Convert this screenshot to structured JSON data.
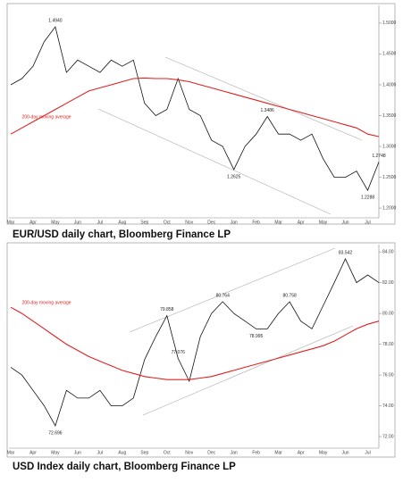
{
  "chart_data": [
    {
      "type": "line",
      "caption": "EUR/USD daily chart, Bloomberg Finance LP",
      "categories": [
        "Mar",
        null,
        "Apr",
        null,
        "May",
        null,
        "Jun",
        null,
        "Jul",
        null,
        "Aug",
        null,
        "Sep",
        null,
        "Oct",
        null,
        "Nov",
        null,
        "Dec",
        null,
        "Jan",
        null,
        "Feb",
        null,
        "Mar",
        null,
        "Apr",
        null,
        "May",
        null,
        "Jun",
        null,
        "Jul",
        null
      ],
      "series": [
        {
          "color": "#111111",
          "values": [
            1.4,
            1.41,
            1.43,
            1.47,
            1.494,
            1.42,
            1.44,
            1.43,
            1.42,
            1.44,
            1.43,
            1.44,
            1.37,
            1.35,
            1.36,
            1.41,
            1.36,
            1.35,
            1.31,
            1.3,
            1.2625,
            1.3,
            1.32,
            1.3486,
            1.32,
            1.32,
            1.31,
            1.32,
            1.28,
            1.25,
            1.25,
            1.26,
            1.2288,
            1.2748
          ],
          "value_labels": [
            null,
            null,
            null,
            null,
            "1.4940",
            null,
            null,
            null,
            null,
            null,
            null,
            null,
            null,
            null,
            null,
            null,
            null,
            null,
            null,
            null,
            "1.2625",
            null,
            null,
            "1.3486",
            null,
            null,
            null,
            null,
            null,
            null,
            null,
            null,
            "1.2288",
            "1.2748"
          ]
        },
        {
          "name": "200-day moving average",
          "color": "#e02020",
          "values": [
            1.32,
            1.33,
            1.34,
            1.35,
            1.36,
            1.37,
            1.38,
            1.39,
            1.395,
            1.4,
            1.405,
            1.41,
            1.411,
            1.41,
            1.41,
            1.408,
            1.405,
            1.4,
            1.395,
            1.39,
            1.385,
            1.38,
            1.375,
            1.37,
            1.365,
            1.36,
            1.355,
            1.35,
            1.345,
            1.34,
            1.335,
            1.33,
            1.32,
            1.316
          ]
        }
      ],
      "ylim": [
        1.19,
        1.523
      ],
      "yticks": [
        {
          "value": 1.2,
          "label": "1.2000"
        },
        {
          "value": 1.25,
          "label": "1.2500"
        },
        {
          "value": 1.3,
          "label": "1.3000"
        },
        {
          "value": 1.35,
          "label": "1.3500"
        },
        {
          "value": 1.4,
          "label": "1.4000"
        },
        {
          "value": 1.45,
          "label": "1.4500"
        },
        {
          "value": 1.5,
          "label": "1.5000"
        }
      ]
    },
    {
      "type": "line",
      "caption": "USD Index daily chart, Bloomberg Finance LP",
      "categories": [
        "Mar",
        null,
        "Apr",
        null,
        "May",
        null,
        "Jun",
        null,
        "Jul",
        null,
        "Aug",
        null,
        "Sep",
        null,
        "Oct",
        null,
        "Nov",
        null,
        "Dec",
        null,
        "Jan",
        null,
        "Feb",
        null,
        "Mar",
        null,
        "Apr",
        null,
        "May",
        null,
        "Jun",
        null,
        "Jul",
        null
      ],
      "series": [
        {
          "color": "#111111",
          "values": [
            76.5,
            76,
            75,
            74,
            72.696,
            75,
            74.5,
            74.5,
            75,
            74,
            74,
            74.5,
            77,
            78.5,
            79.858,
            77.076,
            75.6,
            78.5,
            80,
            80.764,
            80,
            79.5,
            78.995,
            79,
            80,
            80.758,
            79.5,
            79,
            80.5,
            82,
            83.542,
            82,
            82.5,
            82
          ],
          "value_labels": [
            null,
            null,
            null,
            null,
            "72.696",
            null,
            null,
            null,
            null,
            null,
            null,
            null,
            null,
            null,
            "79.858",
            "77.076",
            null,
            null,
            null,
            "80.764",
            null,
            null,
            "78.995",
            null,
            null,
            "80.758",
            null,
            null,
            null,
            null,
            "83.542",
            null,
            null,
            null
          ]
        },
        {
          "name": "200-day moving average",
          "color": "#e02020",
          "values": [
            80.4,
            80.0,
            79.5,
            79.0,
            78.5,
            78.0,
            77.6,
            77.2,
            76.9,
            76.6,
            76.3,
            76.1,
            75.9,
            75.8,
            75.7,
            75.7,
            75.7,
            75.8,
            75.9,
            76.1,
            76.3,
            76.5,
            76.7,
            76.9,
            77.1,
            77.3,
            77.5,
            77.7,
            77.9,
            78.2,
            78.6,
            79.0,
            79.3,
            79.5
          ]
        }
      ],
      "ylim": [
        71.48,
        84.24
      ],
      "yticks": [
        {
          "value": 72,
          "label": "72.00"
        },
        {
          "value": 74,
          "label": "74.00"
        },
        {
          "value": 76,
          "label": "76.00"
        },
        {
          "value": 78,
          "label": "78.00"
        },
        {
          "value": 80,
          "label": "80.00"
        },
        {
          "value": 82,
          "label": "82.00"
        },
        {
          "value": 84,
          "label": "84.00"
        }
      ]
    }
  ]
}
